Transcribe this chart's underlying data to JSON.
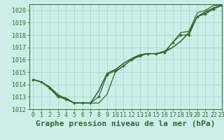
{
  "background_color": "#cceee8",
  "grid_color": "#aad4ce",
  "line_color": "#2d6a2d",
  "xlim": [
    -0.5,
    23
  ],
  "ylim": [
    1012,
    1020.5
  ],
  "yticks": [
    1012,
    1013,
    1014,
    1015,
    1016,
    1017,
    1018,
    1019,
    1020
  ],
  "xticks": [
    0,
    1,
    2,
    3,
    4,
    5,
    6,
    7,
    8,
    9,
    10,
    11,
    12,
    13,
    14,
    15,
    16,
    17,
    18,
    19,
    20,
    21,
    22,
    23
  ],
  "xlabel": "Graphe pression niveau de la mer (hPa)",
  "xlabel_fontsize": 8,
  "tick_fontsize": 6,
  "line1_x": [
    0,
    1,
    2,
    3,
    4,
    5,
    6,
    7,
    8,
    9,
    10,
    11,
    12,
    13,
    14,
    15,
    16,
    17,
    18,
    19,
    20,
    21,
    22,
    23
  ],
  "line1_y": [
    1014.4,
    1014.2,
    1013.8,
    1013.2,
    1012.8,
    1012.5,
    1012.5,
    1012.5,
    1012.5,
    1013.2,
    1015.0,
    1015.5,
    1016.0,
    1016.4,
    1016.5,
    1016.5,
    1016.7,
    1017.0,
    1017.5,
    1018.2,
    1019.5,
    1019.8,
    1020.2,
    1020.4
  ],
  "line2_x": [
    0,
    1,
    2,
    3,
    4,
    5,
    6,
    7,
    8,
    9,
    10,
    11,
    12,
    13,
    14,
    15,
    16,
    17,
    18,
    19,
    20,
    21,
    22,
    23
  ],
  "line2_y": [
    1014.4,
    1014.2,
    1013.8,
    1013.1,
    1012.9,
    1012.5,
    1012.5,
    1012.5,
    1013.5,
    1014.9,
    1015.2,
    1015.7,
    1016.1,
    1016.4,
    1016.5,
    1016.5,
    1016.6,
    1017.0,
    1017.5,
    1018.2,
    1019.5,
    1019.9,
    1020.2,
    1020.4
  ],
  "line3_x": [
    0,
    1,
    2,
    3,
    4,
    5,
    6,
    7,
    8,
    9,
    10,
    11,
    12,
    13,
    14,
    15,
    16,
    17,
    18,
    19,
    20,
    21,
    22,
    23
  ],
  "line3_y": [
    1014.4,
    1014.2,
    1013.8,
    1013.1,
    1012.9,
    1012.5,
    1012.5,
    1012.5,
    1013.5,
    1014.9,
    1015.2,
    1015.7,
    1016.1,
    1016.4,
    1016.5,
    1016.5,
    1016.6,
    1017.4,
    1018.2,
    1018.3,
    1019.8,
    1020.0,
    1020.4,
    1020.4
  ],
  "line_marker_x": [
    0,
    1,
    2,
    3,
    4,
    5,
    6,
    7,
    8,
    9,
    10,
    11,
    12,
    13,
    14,
    15,
    16,
    17,
    18,
    19,
    20,
    21,
    22,
    23
  ],
  "line_marker_y": [
    1014.4,
    1014.2,
    1013.7,
    1013.0,
    1012.8,
    1012.5,
    1012.5,
    1012.5,
    1013.0,
    1014.8,
    1015.1,
    1015.5,
    1016.0,
    1016.3,
    1016.5,
    1016.5,
    1016.6,
    1017.4,
    1018.0,
    1018.0,
    1019.5,
    1019.7,
    1020.1,
    1020.4
  ]
}
